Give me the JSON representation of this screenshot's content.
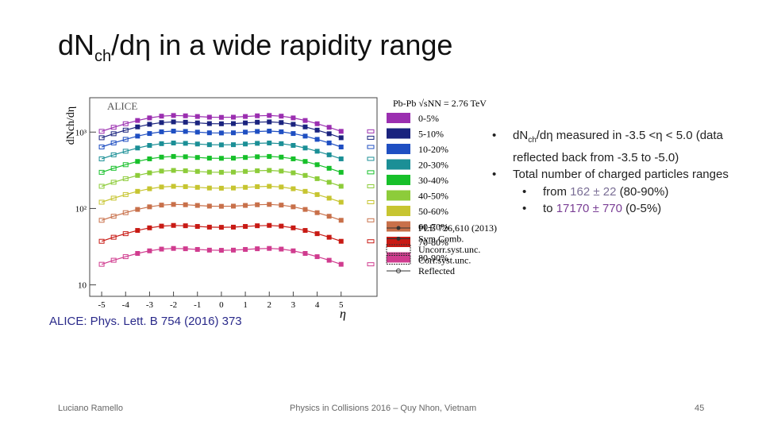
{
  "slide": {
    "title_main": "d",
    "title_n": "N",
    "title_sub": "ch",
    "title_rest": "/dη in a wide rapidity range",
    "reference": "ALICE: Phys. Lett. B 754 (2016) 373",
    "footer_left": "Luciano Ramello",
    "footer_center": "Physics in Collisions 2016 – Quy Nhon, Vietnam",
    "page_number": "45"
  },
  "bullets": {
    "b1_a": "dN",
    "b1_sub": "ch",
    "b1_b": "/dη measured in -3.5 <η < 5.0 (data reflected back from -3.5 to -5.0)",
    "b2": "Total number of charged particles ranges",
    "b3_a": "from ",
    "b3_val": "162 ± 22",
    "b3_b": " (80-90%)",
    "b4_a": "to ",
    "b4_val": "17170 ± 770",
    "b4_b": " (0-5%)",
    "bullet_char": "•"
  },
  "chart_data": {
    "type": "line",
    "label": "ALICE",
    "ylabel": "dNch/dη",
    "xlabel": "η",
    "xlim": [
      -5.5,
      6.5
    ],
    "ylim_log10": [
      0.85,
      3.45
    ],
    "x_ticks": [
      -5,
      -4,
      -3,
      -2,
      -1,
      0,
      1,
      2,
      3,
      4,
      5
    ],
    "y_tick_labels": [
      {
        "v": 1000,
        "label": "10³"
      },
      {
        "v": 100,
        "label": "10²"
      },
      {
        "v": 10,
        "label": "10"
      }
    ],
    "legend_title": "Pb-Pb √sNN = 2.76 TeV",
    "x": [
      -5,
      -4.5,
      -4,
      -3.5,
      -3,
      -2.5,
      -2,
      -1.5,
      -1,
      -0.5,
      0,
      0.5,
      1,
      1.5,
      2,
      2.5,
      3,
      3.5,
      4,
      4.5,
      5
    ],
    "shape": [
      0.62,
      0.7,
      0.78,
      0.86,
      0.93,
      0.98,
      1.0,
      0.99,
      0.97,
      0.95,
      0.945,
      0.95,
      0.97,
      0.99,
      1.0,
      0.98,
      0.93,
      0.86,
      0.78,
      0.7,
      0.62
    ],
    "series": [
      {
        "name": "0-5%",
        "color": "#9b2fb0",
        "peak": 1650
      },
      {
        "name": "5-10%",
        "color": "#1a237e",
        "peak": 1360
      },
      {
        "name": "10-20%",
        "color": "#1f4fc2",
        "peak": 1030
      },
      {
        "name": "20-30%",
        "color": "#1b8f96",
        "peak": 720
      },
      {
        "name": "30-40%",
        "color": "#17c02a",
        "peak": 480
      },
      {
        "name": "40-50%",
        "color": "#8dcc3a",
        "peak": 315
      },
      {
        "name": "50-60%",
        "color": "#c7c531",
        "peak": 195
      },
      {
        "name": "60-70%",
        "color": "#c8704a",
        "peak": 113
      },
      {
        "name": "70-80%",
        "color": "#c81a14",
        "peak": 60
      },
      {
        "name": "80-90%",
        "color": "#d03c8f",
        "peak": 30
      }
    ],
    "extra_legend": [
      "PLB 726,610 (2013)",
      "Sym.Comb.",
      "Uncorr.syst.unc.",
      "Corr.syst.unc.",
      "Reflected"
    ]
  }
}
